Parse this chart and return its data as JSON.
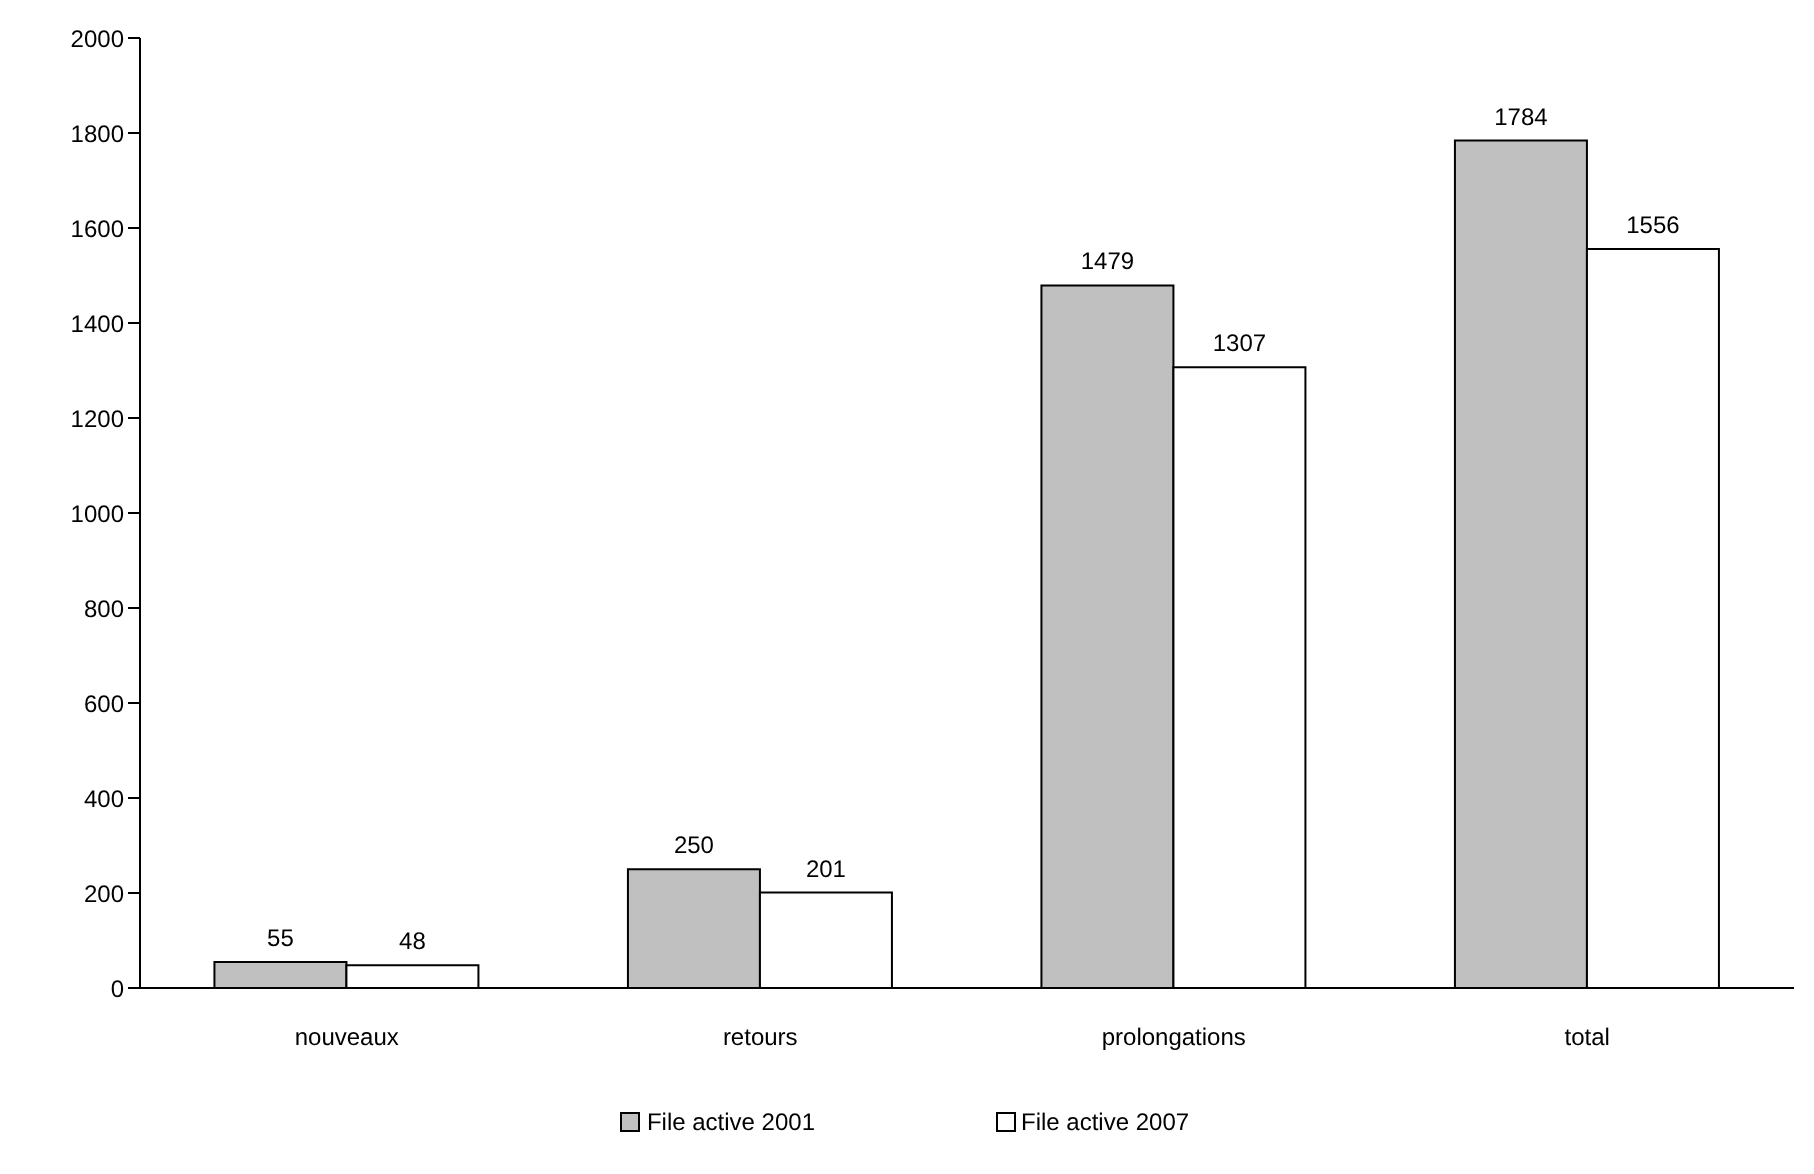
{
  "chart_data": {
    "type": "bar",
    "categories": [
      "nouveaux",
      "retours",
      "prolongations",
      "total"
    ],
    "series": [
      {
        "name": "File active 2001",
        "color": "#c0c0c0",
        "values": [
          55,
          250,
          1479,
          1784
        ]
      },
      {
        "name": "File active 2007",
        "color": "#ffffff",
        "values": [
          48,
          201,
          1307,
          1556
        ]
      }
    ],
    "ylim": [
      0,
      2000
    ],
    "yticks": [
      0,
      200,
      400,
      600,
      800,
      1000,
      1200,
      1400,
      1600,
      1800,
      2000
    ],
    "data_labels": true,
    "legend": "bottom",
    "grid": false
  }
}
